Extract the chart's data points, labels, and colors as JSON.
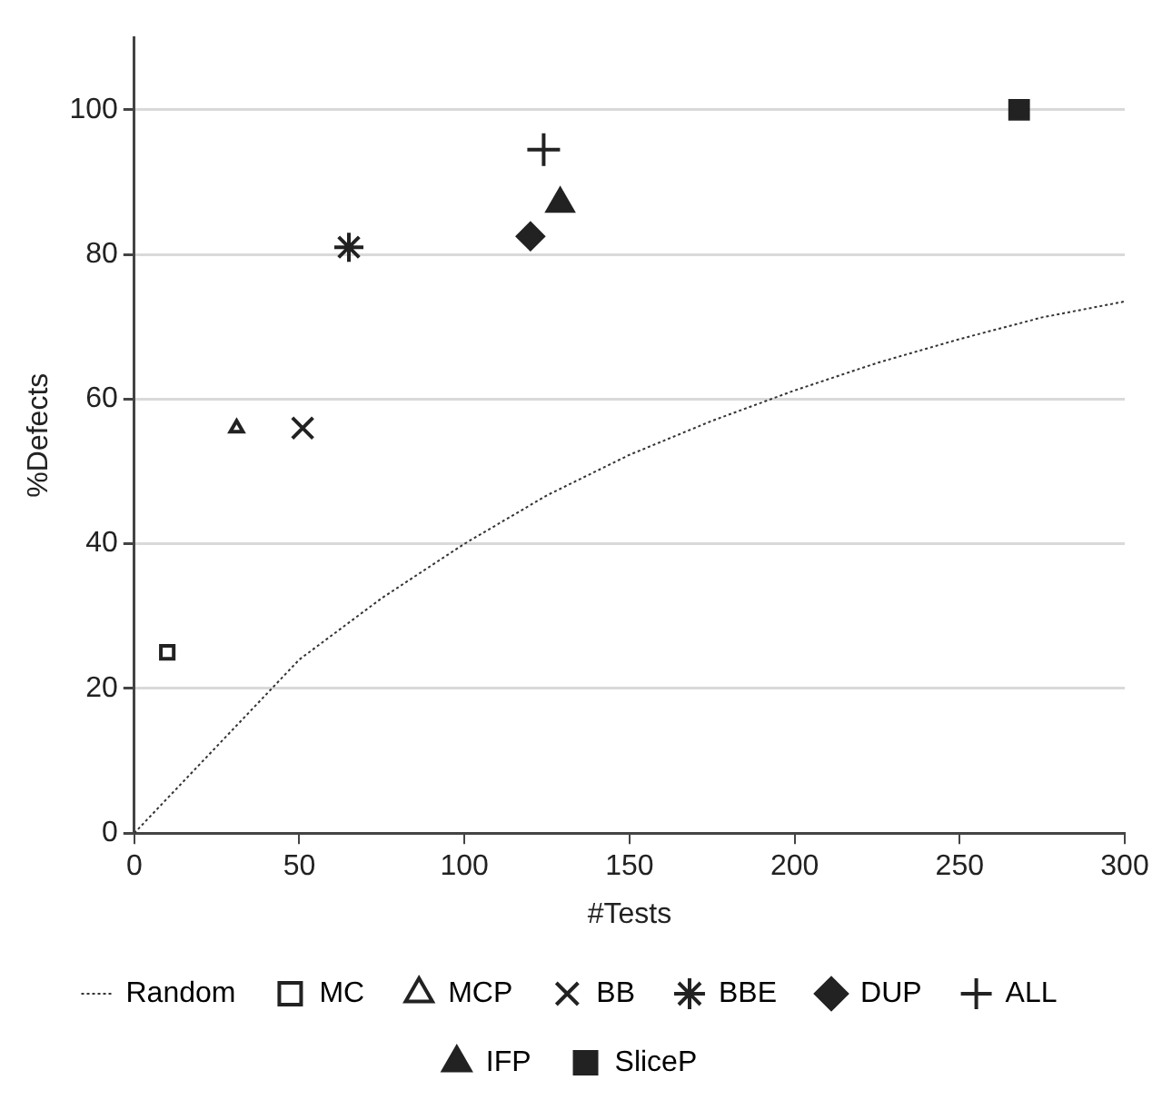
{
  "chart_data": {
    "type": "scatter",
    "xlabel": "#Tests",
    "ylabel": "%Defects",
    "xlim": [
      0,
      300
    ],
    "xticks": [
      0,
      50,
      100,
      150,
      200,
      250,
      300
    ],
    "ylim": [
      0,
      110
    ],
    "yticks": [
      0,
      20,
      40,
      60,
      80,
      100
    ],
    "grid": "y",
    "legend": "bottom",
    "series": [
      {
        "name": "Random",
        "type": "line",
        "color": "#333333",
        "marker": "none",
        "line_style": "dotted",
        "x": [
          0,
          25,
          50,
          75,
          100,
          125,
          150,
          175,
          200,
          225,
          250,
          275,
          300
        ],
        "values": [
          0,
          12,
          24,
          32.5,
          40,
          46.7,
          52.3,
          57,
          61.2,
          65,
          68.3,
          71.3,
          73.5
        ]
      },
      {
        "name": "MC",
        "color": "#222222",
        "marker": "square-open",
        "x": [
          10
        ],
        "values": [
          25
        ]
      },
      {
        "name": "MCP",
        "color": "#222222",
        "marker": "triangle-open",
        "x": [
          31
        ],
        "values": [
          56
        ]
      },
      {
        "name": "BB",
        "color": "#222222",
        "marker": "x",
        "x": [
          51
        ],
        "values": [
          56
        ]
      },
      {
        "name": "BBE",
        "color": "#222222",
        "marker": "cross",
        "x": [
          65
        ],
        "values": [
          81
        ]
      },
      {
        "name": "DUP",
        "color": "#222222",
        "marker": "diamond",
        "x": [
          120
        ],
        "values": [
          82.5
        ]
      },
      {
        "name": "ALL",
        "color": "#222222",
        "marker": "plus",
        "x": [
          124
        ],
        "values": [
          94.5
        ]
      },
      {
        "name": "IFP",
        "color": "#222222",
        "marker": "triangle",
        "x": [
          129
        ],
        "values": [
          87
        ]
      },
      {
        "name": "SliceP",
        "color": "#222222",
        "marker": "square",
        "x": [
          268
        ],
        "values": [
          100
        ]
      }
    ]
  }
}
